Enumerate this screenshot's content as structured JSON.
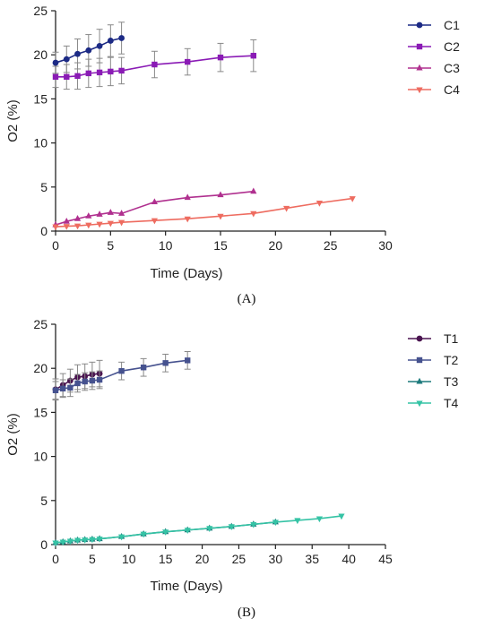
{
  "chart_data": [
    {
      "type": "line",
      "panel_label": "(A)",
      "xlabel": "Time (Days)",
      "ylabel": "O2 (%)",
      "xlim": [
        0,
        30
      ],
      "ylim": [
        0,
        25
      ],
      "xticks": [
        0,
        5,
        10,
        15,
        20,
        25,
        30
      ],
      "yticks": [
        0,
        5,
        10,
        15,
        20,
        25
      ],
      "grid": false,
      "legend": "right",
      "series": [
        {
          "name": "C1",
          "color": "#1c2a85",
          "marker": "circle",
          "x": [
            0,
            1,
            2,
            3,
            4,
            5,
            6
          ],
          "y": [
            19.1,
            19.5,
            20.1,
            20.5,
            21.0,
            21.6,
            21.9
          ],
          "err": [
            1.2,
            1.5,
            1.7,
            1.8,
            1.9,
            1.8,
            1.8
          ]
        },
        {
          "name": "C2",
          "color": "#8a1bb5",
          "marker": "square",
          "x": [
            0,
            1,
            2,
            3,
            4,
            5,
            6,
            9,
            12,
            15,
            18
          ],
          "y": [
            17.5,
            17.5,
            17.6,
            17.9,
            18.0,
            18.1,
            18.2,
            18.9,
            19.2,
            19.7,
            19.9
          ],
          "err": [
            1.2,
            1.4,
            1.5,
            1.6,
            1.6,
            1.6,
            1.5,
            1.5,
            1.5,
            1.6,
            1.8
          ]
        },
        {
          "name": "C3",
          "color": "#b0308f",
          "marker": "triangle-up",
          "x": [
            0,
            1,
            2,
            3,
            4,
            5,
            6,
            9,
            12,
            15,
            18
          ],
          "y": [
            0.7,
            1.1,
            1.4,
            1.7,
            1.9,
            2.1,
            2.0,
            3.3,
            3.8,
            4.1,
            4.5
          ],
          "err": []
        },
        {
          "name": "C4",
          "color": "#ee6c60",
          "marker": "triangle-down",
          "x": [
            0,
            1,
            2,
            3,
            4,
            5,
            6,
            9,
            12,
            15,
            18,
            21,
            24,
            27
          ],
          "y": [
            0.5,
            0.55,
            0.6,
            0.7,
            0.8,
            0.9,
            1.0,
            1.2,
            1.4,
            1.7,
            2.0,
            2.6,
            3.2,
            3.7
          ],
          "err": []
        }
      ]
    },
    {
      "type": "line",
      "panel_label": "(B)",
      "xlabel": "Time (Days)",
      "ylabel": "O2 (%)",
      "xlim": [
        0,
        45
      ],
      "ylim": [
        0,
        25
      ],
      "xticks": [
        0,
        5,
        10,
        15,
        20,
        25,
        30,
        35,
        40,
        45
      ],
      "yticks": [
        0,
        5,
        10,
        15,
        20,
        25
      ],
      "grid": false,
      "legend": "right",
      "series": [
        {
          "name": "T1",
          "color": "#4a1450",
          "marker": "circle",
          "x": [
            0,
            1,
            2,
            3,
            4,
            5,
            6
          ],
          "y": [
            17.6,
            18.1,
            18.6,
            19.0,
            19.1,
            19.3,
            19.4
          ],
          "err": [
            1.2,
            1.3,
            1.3,
            1.4,
            1.4,
            1.4,
            1.5
          ]
        },
        {
          "name": "T2",
          "color": "#46528f",
          "marker": "square",
          "x": [
            0,
            1,
            2,
            3,
            4,
            5,
            6,
            9,
            12,
            15,
            18
          ],
          "y": [
            17.5,
            17.7,
            17.8,
            18.3,
            18.5,
            18.6,
            18.7,
            19.7,
            20.1,
            20.6,
            20.9
          ],
          "err": [
            1.0,
            1.0,
            1.0,
            1.0,
            1.0,
            1.0,
            1.0,
            1.0,
            1.0,
            1.0,
            1.0
          ]
        },
        {
          "name": "T3",
          "color": "#1d7a7c",
          "marker": "triangle-up",
          "x": [
            0,
            1,
            2,
            3,
            4,
            5,
            6,
            9,
            12,
            15,
            18,
            21,
            24,
            27,
            30
          ],
          "y": [
            0.2,
            0.3,
            0.4,
            0.5,
            0.55,
            0.6,
            0.65,
            0.9,
            1.2,
            1.45,
            1.65,
            1.85,
            2.05,
            2.3,
            2.55
          ],
          "err": []
        },
        {
          "name": "T4",
          "color": "#35c3a5",
          "marker": "triangle-down",
          "x": [
            0,
            1,
            2,
            3,
            4,
            5,
            6,
            9,
            12,
            15,
            18,
            21,
            24,
            27,
            30,
            33,
            36,
            39
          ],
          "y": [
            0.2,
            0.3,
            0.4,
            0.5,
            0.55,
            0.6,
            0.65,
            0.9,
            1.2,
            1.45,
            1.65,
            1.85,
            2.05,
            2.3,
            2.55,
            2.75,
            2.95,
            3.25
          ],
          "err": []
        }
      ]
    }
  ]
}
